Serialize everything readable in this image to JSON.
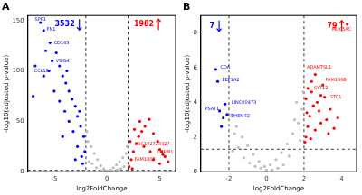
{
  "chart_data": [
    {
      "type": "scatter",
      "title": "A",
      "x_label": "log2FoldChange",
      "y_label": "-log10(adjusted p-value)",
      "xlim": [
        -7.5,
        6.5
      ],
      "xticks": [
        -5,
        0,
        5
      ],
      "ylim": [
        0,
        155
      ],
      "yticks": [
        0,
        50,
        100,
        150
      ],
      "grid": false,
      "vlines": [
        -2,
        2
      ],
      "hlines": [
        1.3
      ],
      "series": [
        {
          "color": "#bebebe",
          "x": [
            -1.8,
            -1.5,
            -1.2,
            -0.9,
            -0.6,
            -0.3,
            0,
            0.3,
            0.6,
            0.9,
            1.2,
            1.5,
            1.8,
            -1.7,
            -1.0,
            -0.5,
            0.5,
            1.0,
            1.6,
            -1.9,
            1.9,
            -1.4,
            1.3,
            0.2,
            -0.2
          ],
          "values": [
            30,
            25,
            18,
            12,
            6,
            3,
            1,
            2,
            4,
            7,
            10,
            14,
            18,
            10,
            4,
            1,
            1,
            2,
            5,
            40,
            25,
            8,
            3,
            0.5,
            0.3
          ]
        },
        {
          "color": "#0000ff",
          "x": [
            -6.3,
            -6.0,
            -5.4,
            -5.2,
            -5.5,
            -4.8,
            -4.5,
            -4.2,
            -5.8,
            -3.9,
            -3.6,
            -3.3,
            -3.0,
            -2.8,
            -2.5,
            -2.2,
            -2.1,
            -2.4,
            -2.8,
            -3.2,
            -3.6,
            -4.0,
            -4.5,
            -5.0,
            -6.0,
            -2.3,
            -3.0,
            -4.2,
            -6.8,
            -7.0,
            -2.6,
            -3.8
          ],
          "values": [
            148,
            140,
            128,
            110,
            100,
            118,
            105,
            95,
            120,
            88,
            80,
            72,
            65,
            55,
            45,
            35,
            20,
            15,
            25,
            40,
            50,
            60,
            70,
            80,
            95,
            8,
            12,
            35,
            105,
            75,
            60,
            100
          ]
        },
        {
          "color": "#ff0000",
          "x": [
            2.1,
            2.3,
            2.5,
            2.8,
            3.0,
            3.3,
            3.6,
            4.0,
            4.4,
            4.8,
            5.2,
            5.5,
            5.8,
            2.2,
            2.6,
            3.1,
            3.5,
            4.1,
            2.4,
            5.0,
            5.0,
            4.4,
            5.3
          ],
          "values": [
            5,
            12,
            20,
            28,
            35,
            40,
            45,
            52,
            38,
            30,
            20,
            15,
            10,
            30,
            42,
            50,
            25,
            20,
            3,
            8,
            22,
            12,
            17
          ]
        }
      ],
      "annotations": [
        {
          "text": "SPP1",
          "x": -6.3,
          "y": 151,
          "color": "#0000ff"
        },
        {
          "text": "FN1",
          "x": -5.3,
          "y": 141,
          "color": "#0000ff"
        },
        {
          "text": "CD163",
          "x": -4.3,
          "y": 128,
          "color": "#0000ff"
        },
        {
          "text": "VSIG4",
          "x": -4.2,
          "y": 110,
          "color": "#0000ff"
        },
        {
          "text": "CCL18",
          "x": -6.2,
          "y": 100,
          "color": "#0000ff"
        },
        {
          "text": "LOC102723427",
          "x": 4.3,
          "y": 27,
          "color": "#ff0000"
        },
        {
          "text": "FAM180B",
          "x": 3.6,
          "y": 12,
          "color": "#ff0000"
        },
        {
          "text": "CHRM1",
          "x": 5.5,
          "y": 19,
          "color": "#ff0000"
        },
        {
          "text": "3532",
          "x": -4.0,
          "y": 146,
          "color": "#0000ff",
          "arrow": "down"
        },
        {
          "text": "1982",
          "x": 3.5,
          "y": 146,
          "color": "#ff0000",
          "arrow": "up"
        }
      ]
    },
    {
      "type": "scatter",
      "title": "B",
      "x_label": "log2FoldChange",
      "y_label": "-log10(adjusted p-value)",
      "xlim": [
        -3.5,
        4.8
      ],
      "xticks": [
        -2,
        0,
        2,
        4
      ],
      "ylim": [
        0,
        9
      ],
      "yticks": [
        0,
        2,
        4,
        6,
        8
      ],
      "grid": false,
      "vlines": [
        -2,
        2
      ],
      "hlines": [
        1.3
      ],
      "series": [
        {
          "color": "#bebebe",
          "x": [
            -1.9,
            -1.6,
            -1.3,
            -1.0,
            -0.7,
            -0.4,
            -0.1,
            0.2,
            0.5,
            0.8,
            1.1,
            1.4,
            1.7,
            1.9,
            -1.8,
            -1.2,
            -0.6,
            0,
            0.6,
            1.2,
            1.8,
            -1.5,
            1.5,
            -0.9,
            0.9,
            0.3,
            -0.3,
            1.6,
            -1.7,
            1.95
          ],
          "values": [
            3.2,
            2.6,
            2.0,
            1.5,
            1.0,
            0.6,
            0.3,
            0.4,
            0.7,
            1.1,
            1.6,
            2.2,
            2.8,
            3.6,
            1.2,
            0.8,
            0.3,
            0.1,
            0.2,
            0.9,
            1.8,
            1.4,
            3.0,
            0.5,
            0.4,
            0.1,
            0.2,
            4.0,
            2.2,
            4.6
          ]
        },
        {
          "color": "#0000ff",
          "x": [
            -2.7,
            -2.6,
            -2.2,
            -2.5,
            -2.3,
            -2.1,
            -2.4
          ],
          "values": [
            5.9,
            5.2,
            3.9,
            3.5,
            3.1,
            3.3,
            2.6
          ]
        },
        {
          "color": "#ff0000",
          "x": [
            4.3,
            2.6,
            3.0,
            2.4,
            3.1,
            2.1,
            2.2,
            2.3,
            2.5,
            2.7,
            2.8,
            2.9,
            3.2,
            3.4,
            3.6,
            2.1,
            2.2,
            2.4,
            2.6,
            2.9,
            3.3,
            2.05,
            2.15,
            2.35,
            3.8
          ],
          "values": [
            8.5,
            5.6,
            5.0,
            4.6,
            4.3,
            2.0,
            2.6,
            3.2,
            3.8,
            4.0,
            3.5,
            2.8,
            3.0,
            3.6,
            2.5,
            4.2,
            4.8,
            5.2,
            2.4,
            4.4,
            2.2,
            1.7,
            3.4,
            1.9,
            3.1
          ]
        }
      ],
      "annotations": [
        {
          "text": "MUC5AC",
          "x": 4.0,
          "y": 8.2,
          "color": "#ff0000"
        },
        {
          "text": "ADAMTSL1",
          "x": 2.8,
          "y": 6.0,
          "color": "#ff0000"
        },
        {
          "text": "FAM166B",
          "x": 3.7,
          "y": 5.3,
          "color": "#ff0000"
        },
        {
          "text": "SYT12",
          "x": 2.9,
          "y": 4.8,
          "color": "#ff0000"
        },
        {
          "text": "STC1",
          "x": 3.7,
          "y": 4.3,
          "color": "#ff0000"
        },
        {
          "text": "CDA",
          "x": -2.2,
          "y": 6.0,
          "color": "#0000ff"
        },
        {
          "text": "EEF1A2",
          "x": -1.9,
          "y": 5.3,
          "color": "#0000ff"
        },
        {
          "text": "LINC00473",
          "x": -1.2,
          "y": 4.0,
          "color": "#0000ff"
        },
        {
          "text": "PSAT1",
          "x": -2.9,
          "y": 3.6,
          "color": "#0000ff"
        },
        {
          "text": "TMEM72",
          "x": -1.4,
          "y": 3.2,
          "color": "#0000ff"
        },
        {
          "text": "7",
          "x": -2.9,
          "y": 8.4,
          "color": "#0000ff",
          "arrow": "down"
        },
        {
          "text": "79",
          "x": 3.5,
          "y": 8.4,
          "color": "#ff0000",
          "arrow": "up"
        }
      ]
    }
  ]
}
